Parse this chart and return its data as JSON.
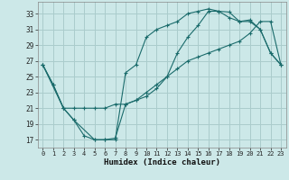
{
  "title": "",
  "xlabel": "Humidex (Indice chaleur)",
  "bg_color": "#cce8e8",
  "grid_color": "#aacccc",
  "line_color": "#1a6b6b",
  "xlim": [
    -0.5,
    23.5
  ],
  "ylim": [
    16,
    34.5
  ],
  "yticks": [
    17,
    19,
    21,
    23,
    25,
    27,
    29,
    31,
    33
  ],
  "xticks": [
    0,
    1,
    2,
    3,
    4,
    5,
    6,
    7,
    8,
    9,
    10,
    11,
    12,
    13,
    14,
    15,
    16,
    17,
    18,
    19,
    20,
    21,
    22,
    23
  ],
  "line1_x": [
    0,
    1,
    2,
    3,
    4,
    5,
    6,
    7,
    8,
    9,
    10,
    11,
    12,
    13,
    14,
    15,
    16,
    17,
    18,
    19,
    20,
    21,
    22,
    23
  ],
  "line1_y": [
    26.5,
    24,
    21,
    19.5,
    17.5,
    17,
    17,
    17,
    25.5,
    26.5,
    30,
    31,
    31.5,
    32,
    33,
    33.3,
    33.6,
    33.3,
    33.2,
    32,
    32.2,
    31,
    28,
    26.5
  ],
  "line2_x": [
    0,
    1,
    2,
    3,
    4,
    5,
    6,
    7,
    8,
    9,
    10,
    11,
    12,
    13,
    14,
    15,
    16,
    17,
    18,
    19,
    20,
    21,
    22,
    23
  ],
  "line2_y": [
    26.5,
    24,
    21,
    21,
    21,
    21,
    21,
    21.5,
    21.5,
    22,
    23,
    24,
    25,
    26,
    27,
    27.5,
    28,
    28.5,
    29,
    29.5,
    30.5,
    32,
    32,
    26.5
  ],
  "line3_x": [
    0,
    2,
    3,
    5,
    6,
    7,
    8,
    9,
    10,
    11,
    12,
    13,
    14,
    15,
    16,
    17,
    18,
    19,
    20,
    21,
    22,
    23
  ],
  "line3_y": [
    26.5,
    21,
    19.5,
    17,
    17,
    17.2,
    21.5,
    22,
    22.5,
    23.5,
    25,
    28,
    30,
    31.5,
    33.3,
    33.3,
    32.5,
    32,
    32,
    31,
    28,
    26.5
  ]
}
